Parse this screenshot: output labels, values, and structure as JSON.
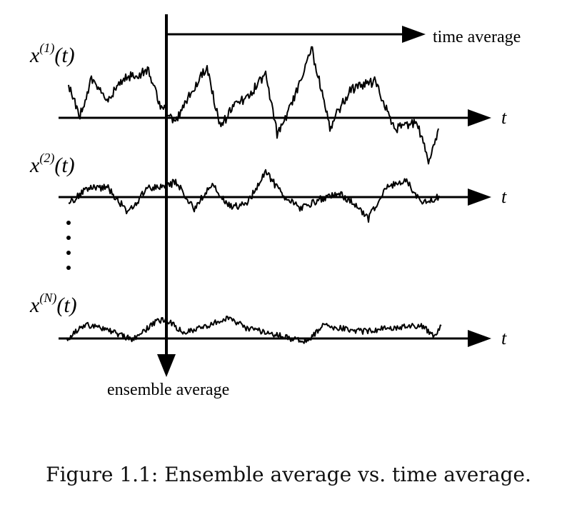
{
  "figure": {
    "signals": [
      {
        "base": "x",
        "superscript": "(1)",
        "suffix": "(t)",
        "axis_label": "t"
      },
      {
        "base": "x",
        "superscript": "(2)",
        "suffix": "(t)",
        "axis_label": "t"
      },
      {
        "base": "x",
        "superscript": "(N)",
        "suffix": "(t)",
        "axis_label": "t"
      }
    ],
    "time_average_label": "time average",
    "ensemble_average_label": "ensemble average",
    "ellipsis": "⋮"
  },
  "caption": "Figure 1.1: Ensemble average vs. time average."
}
